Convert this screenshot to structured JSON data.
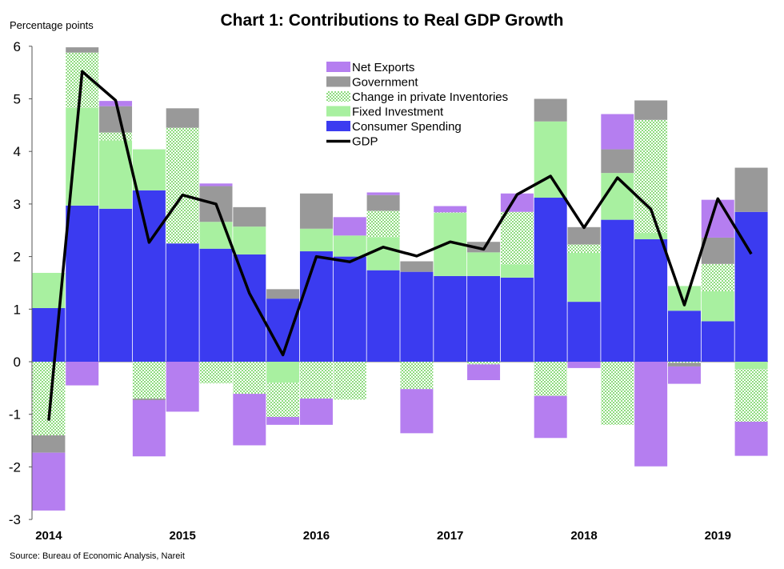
{
  "title": "Chart 1: Contributions to Real GDP Growth",
  "source": "Source:  Bureau of Economic Analysis, Nareit",
  "chart_data": {
    "type": "bar",
    "stacked": true,
    "ylabel": "Percentage points",
    "ylim": [
      -3,
      6
    ],
    "yticks": [
      "-3",
      "-2",
      "-1",
      "0",
      "1",
      "2",
      "3",
      "4",
      "5",
      "6"
    ],
    "year_labels": [
      "2014",
      "2015",
      "2016",
      "2017",
      "2018",
      "2019"
    ],
    "categories": [
      "2014Q1",
      "2014Q2",
      "2014Q3",
      "2014Q4",
      "2015Q1",
      "2015Q2",
      "2015Q3",
      "2015Q4",
      "2016Q1",
      "2016Q2",
      "2016Q3",
      "2016Q4",
      "2017Q1",
      "2017Q2",
      "2017Q3",
      "2017Q4",
      "2018Q1",
      "2018Q2",
      "2018Q3",
      "2018Q4",
      "2019Q1",
      "2019Q2"
    ],
    "legend_position": "top-center",
    "series": [
      {
        "name": "Net Exports",
        "color": "#b57ef0",
        "values": [
          -1.1,
          -0.45,
          0.1,
          -1.07,
          -0.95,
          0.05,
          -0.98,
          -0.15,
          -0.5,
          0.35,
          0.05,
          -0.84,
          0.12,
          -0.3,
          0.35,
          -0.8,
          -0.12,
          0.67,
          -1.99,
          -0.33,
          0.72,
          -0.65
        ]
      },
      {
        "name": "Government",
        "color": "#999999",
        "values": [
          -0.33,
          0.1,
          0.5,
          -0.03,
          0.37,
          0.68,
          0.37,
          0.18,
          0.67,
          0.0,
          0.3,
          0.2,
          0.0,
          0.2,
          0.0,
          0.43,
          0.33,
          0.45,
          0.37,
          -0.07,
          0.5,
          0.84
        ]
      },
      {
        "name": "Change in private Inventories",
        "color": "#b4eea4",
        "values": [
          -1.4,
          1.05,
          0.15,
          -0.7,
          2.2,
          -0.41,
          -0.61,
          -0.65,
          -0.7,
          -0.72,
          0.5,
          -0.52,
          0.01,
          -0.05,
          1.0,
          -0.65,
          0.16,
          -1.2,
          2.15,
          -0.02,
          0.52,
          -1.0
        ]
      },
      {
        "name": "Fixed Investment",
        "color": "#a8f0a0",
        "values": [
          0.67,
          1.86,
          1.3,
          0.78,
          0.0,
          0.51,
          0.53,
          -0.4,
          0.43,
          0.4,
          0.63,
          0.0,
          1.2,
          0.45,
          0.25,
          1.45,
          0.93,
          0.89,
          0.12,
          0.47,
          0.57,
          -0.14
        ]
      },
      {
        "name": "Consumer Spending",
        "color": "#3b3bf0",
        "values": [
          1.02,
          2.97,
          2.91,
          3.26,
          2.25,
          2.15,
          2.04,
          1.2,
          2.1,
          2.0,
          1.74,
          1.71,
          1.63,
          1.63,
          1.6,
          3.12,
          1.14,
          2.7,
          2.33,
          0.97,
          0.77,
          2.85
        ]
      },
      {
        "name": "GDP",
        "color": "#000000",
        "type": "line",
        "values": [
          -1.12,
          5.52,
          4.97,
          2.27,
          3.17,
          3.0,
          1.3,
          0.13,
          2.0,
          1.9,
          2.18,
          2.01,
          2.28,
          2.14,
          3.18,
          3.53,
          2.55,
          3.5,
          2.9,
          1.08,
          3.1,
          2.05
        ]
      }
    ]
  }
}
